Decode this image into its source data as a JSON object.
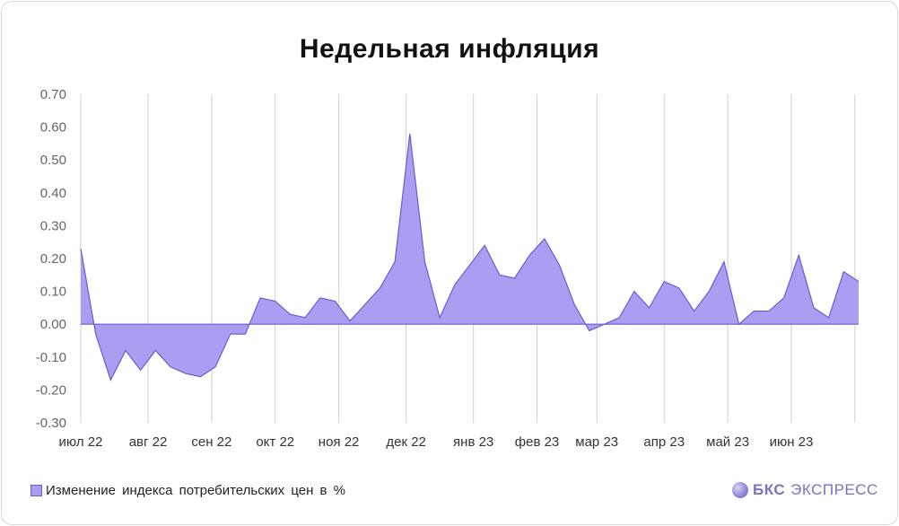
{
  "title": "Недельная инфляция",
  "legend": {
    "label": "Изменение индекса потребительских цен в %"
  },
  "brand": {
    "name": "БКС",
    "sub": "ЭКСПРЕСС"
  },
  "colors": {
    "fill": "#a99ef2",
    "stroke": "#6a5ccc",
    "grid": "#d0d0d0",
    "axis": "#555555"
  },
  "chart_data": {
    "type": "area",
    "title": "Недельная инфляция",
    "xlabel": "",
    "ylabel": "",
    "ylim": [
      -0.3,
      0.7
    ],
    "yticks": [
      -0.3,
      -0.2,
      -0.1,
      0.0,
      0.1,
      0.2,
      0.3,
      0.4,
      0.5,
      0.6,
      0.7
    ],
    "ytick_labels": [
      "-0.30",
      "-0.20",
      "-0.10",
      "0.00",
      "0.10",
      "0.20",
      "0.30",
      "0.40",
      "0.50",
      "0.60",
      "0.70"
    ],
    "month_labels": [
      "июл 22",
      "авг 22",
      "сен 22",
      "окт 22",
      "ноя 22",
      "дек 22",
      "янв 23",
      "фев 23",
      "мар 23",
      "апр 23",
      "май 23",
      "июн 23"
    ],
    "month_tick_week_index": [
      0,
      4.5,
      8.75,
      13,
      17.25,
      21.75,
      26.25,
      30.5,
      34.5,
      39,
      43.25,
      47.5,
      51.75
    ],
    "grid": true,
    "legend_position": "bottom-left",
    "series": [
      {
        "name": "Изменение индекса потребительских цен в %",
        "values": [
          0.23,
          -0.03,
          -0.17,
          -0.08,
          -0.14,
          -0.08,
          -0.13,
          -0.15,
          -0.16,
          -0.13,
          -0.03,
          -0.03,
          0.08,
          0.07,
          0.03,
          0.02,
          0.08,
          0.07,
          0.01,
          0.06,
          0.11,
          0.19,
          0.58,
          0.19,
          0.02,
          0.12,
          0.18,
          0.24,
          0.15,
          0.14,
          0.21,
          0.26,
          0.18,
          0.06,
          -0.02,
          0.0,
          0.02,
          0.1,
          0.05,
          0.13,
          0.11,
          0.04,
          0.1,
          0.19,
          0.0,
          0.04,
          0.04,
          0.08,
          0.21,
          0.05,
          0.02,
          0.16,
          0.13
        ]
      }
    ]
  }
}
